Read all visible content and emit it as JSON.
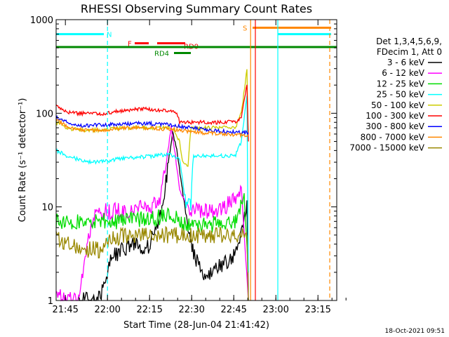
{
  "chart_data": {
    "type": "line",
    "title": "RHESSI Observing Summary Count Rates",
    "xlabel": "Start Time (28-Jun-04 21:41:42)",
    "ylabel": "Count Rate (s⁻¹ detector⁻¹)",
    "y_scale": "log",
    "ylim": [
      1,
      1000
    ],
    "xlim_minutes": [
      0,
      100
    ],
    "x_ticks": [
      {
        "label": "21:45",
        "minute": 3.3
      },
      {
        "label": "22:00",
        "minute": 18.3
      },
      {
        "label": "22:15",
        "minute": 33.3
      },
      {
        "label": "22:30",
        "minute": 48.3
      },
      {
        "label": "22:45",
        "minute": 63.3
      },
      {
        "label": "23:00",
        "minute": 78.3
      },
      {
        "label": "23:15",
        "minute": 93.3
      }
    ],
    "y_ticks": [
      {
        "label": "1",
        "value": 1
      },
      {
        "label": "10",
        "value": 10
      },
      {
        "label": "100",
        "value": 100
      },
      {
        "label": "1000",
        "value": 1000
      }
    ],
    "legend": {
      "header_lines": [
        "Det 1,3,4,5,6,9,",
        "FDecim 1, Att 0"
      ],
      "placement": "right"
    },
    "series": [
      {
        "name": "3 - 6 keV",
        "color": "#000000",
        "points": [
          [
            8,
            1
          ],
          [
            14,
            1
          ],
          [
            17,
            1.3
          ],
          [
            20,
            3
          ],
          [
            24,
            3.5
          ],
          [
            28,
            4
          ],
          [
            32,
            3.5
          ],
          [
            35,
            5
          ],
          [
            38,
            10
          ],
          [
            40,
            30
          ],
          [
            41.5,
            62
          ],
          [
            43,
            40
          ],
          [
            45,
            15
          ],
          [
            47,
            6
          ],
          [
            49,
            3
          ],
          [
            52,
            2
          ],
          [
            56,
            2
          ],
          [
            60,
            2.5
          ],
          [
            63,
            3
          ],
          [
            66,
            5
          ],
          [
            68,
            12
          ],
          [
            68.5,
            1
          ]
        ]
      },
      {
        "name": "6 - 12 keV",
        "color": "#ff00ff",
        "points": [
          [
            0,
            1.2
          ],
          [
            3,
            1
          ],
          [
            8,
            1
          ],
          [
            13,
            8
          ],
          [
            18,
            9
          ],
          [
            24,
            9
          ],
          [
            28,
            9
          ],
          [
            31,
            10
          ],
          [
            34,
            10
          ],
          [
            37,
            12
          ],
          [
            39,
            25
          ],
          [
            41,
            72
          ],
          [
            42.5,
            35
          ],
          [
            44,
            15
          ],
          [
            47,
            10
          ],
          [
            50,
            9
          ],
          [
            55,
            9
          ],
          [
            60,
            10
          ],
          [
            64,
            12
          ],
          [
            66,
            16
          ],
          [
            68.5,
            1
          ]
        ]
      },
      {
        "name": "12 - 25 keV",
        "color": "#00dd00",
        "points": [
          [
            0,
            7
          ],
          [
            5,
            7
          ],
          [
            10,
            6.8
          ],
          [
            15,
            7
          ],
          [
            20,
            7
          ],
          [
            25,
            7
          ],
          [
            30,
            7.5
          ],
          [
            35,
            7.5
          ],
          [
            38,
            8
          ],
          [
            41,
            8.5
          ],
          [
            44,
            7
          ],
          [
            47,
            6.5
          ],
          [
            50,
            6.5
          ],
          [
            55,
            6.5
          ],
          [
            60,
            6.5
          ],
          [
            64,
            7
          ],
          [
            67,
            12
          ],
          [
            68.5,
            2
          ]
        ]
      },
      {
        "name": "25 - 50 keV",
        "color": "#00ffff",
        "points": [
          [
            0,
            40
          ],
          [
            4,
            35
          ],
          [
            8,
            32
          ],
          [
            12,
            30
          ],
          [
            18,
            31
          ],
          [
            24,
            33
          ],
          [
            30,
            34
          ],
          [
            35,
            35
          ],
          [
            38,
            36
          ],
          [
            40,
            36
          ],
          [
            42,
            35
          ],
          [
            44,
            33
          ],
          [
            46,
            12
          ],
          [
            48,
            11
          ],
          [
            49,
            35
          ],
          [
            53,
            35
          ],
          [
            57,
            35
          ],
          [
            61,
            35
          ],
          [
            64,
            36
          ],
          [
            66,
            50
          ],
          [
            68,
            150
          ],
          [
            68.5,
            2
          ]
        ]
      },
      {
        "name": "50 - 100 keV",
        "color": "#cccc00",
        "points": [
          [
            0,
            80
          ],
          [
            5,
            68
          ],
          [
            10,
            66
          ],
          [
            15,
            66
          ],
          [
            20,
            68
          ],
          [
            25,
            70
          ],
          [
            30,
            71
          ],
          [
            35,
            70
          ],
          [
            40,
            70
          ],
          [
            42,
            68
          ],
          [
            44,
            50
          ],
          [
            45,
            30
          ],
          [
            47,
            26
          ],
          [
            48,
            70
          ],
          [
            52,
            70
          ],
          [
            57,
            70
          ],
          [
            61,
            70
          ],
          [
            64,
            72
          ],
          [
            66,
            100
          ],
          [
            68,
            300
          ],
          [
            68.5,
            50
          ]
        ]
      },
      {
        "name": "100 - 300 keV",
        "color": "#ff0000",
        "points": [
          [
            0,
            120
          ],
          [
            3,
            105
          ],
          [
            7,
            100
          ],
          [
            12,
            100
          ],
          [
            17,
            98
          ],
          [
            22,
            105
          ],
          [
            27,
            110
          ],
          [
            32,
            112
          ],
          [
            35,
            108
          ],
          [
            40,
            106
          ],
          [
            43,
            103
          ],
          [
            44,
            80
          ],
          [
            46,
            80
          ],
          [
            50,
            80
          ],
          [
            55,
            80
          ],
          [
            60,
            80
          ],
          [
            64,
            82
          ],
          [
            66,
            90
          ],
          [
            68,
            200
          ],
          [
            68.5,
            50
          ]
        ]
      },
      {
        "name": "300 - 800 keV",
        "color": "#0000ff",
        "points": [
          [
            0,
            90
          ],
          [
            5,
            78
          ],
          [
            10,
            74
          ],
          [
            15,
            75
          ],
          [
            20,
            76
          ],
          [
            25,
            77
          ],
          [
            30,
            78
          ],
          [
            35,
            77
          ],
          [
            40,
            76
          ],
          [
            44,
            72
          ],
          [
            48,
            70
          ],
          [
            52,
            68
          ],
          [
            56,
            66
          ],
          [
            60,
            64
          ],
          [
            64,
            63
          ],
          [
            67,
            62
          ],
          [
            68.5,
            62
          ]
        ]
      },
      {
        "name": "800 - 7000 keV",
        "color": "#ff8800",
        "points": [
          [
            0,
            85
          ],
          [
            5,
            70
          ],
          [
            10,
            66
          ],
          [
            15,
            66
          ],
          [
            20,
            68
          ],
          [
            25,
            70
          ],
          [
            30,
            70
          ],
          [
            35,
            69
          ],
          [
            40,
            68
          ],
          [
            44,
            66
          ],
          [
            48,
            64
          ],
          [
            52,
            62
          ],
          [
            56,
            61
          ],
          [
            60,
            60
          ],
          [
            64,
            59
          ],
          [
            67,
            58
          ],
          [
            68.5,
            58
          ]
        ]
      },
      {
        "name": "7000 - 15000 keV",
        "color": "#998800",
        "points": [
          [
            0,
            5
          ],
          [
            4,
            4
          ],
          [
            8,
            3.5
          ],
          [
            12,
            3.5
          ],
          [
            16,
            3.5
          ],
          [
            20,
            4.5
          ],
          [
            24,
            5
          ],
          [
            28,
            5
          ],
          [
            32,
            5
          ],
          [
            36,
            5
          ],
          [
            40,
            5
          ],
          [
            44,
            5
          ],
          [
            48,
            5
          ],
          [
            52,
            5
          ],
          [
            56,
            5
          ],
          [
            60,
            5
          ],
          [
            64,
            5
          ],
          [
            68,
            5
          ],
          [
            68.5,
            1
          ]
        ]
      }
    ],
    "flags": [
      {
        "label": "N",
        "color": "#00ffff",
        "y": 700,
        "segments": [
          [
            0,
            17
          ],
          [
            79,
            98
          ]
        ]
      },
      {
        "label": "F",
        "color": "#ff0000",
        "y": 560,
        "segments": [
          [
            28,
            33
          ]
        ]
      },
      {
        "label": "RD0",
        "color": "#ff0000",
        "y": 560,
        "segments": [
          [
            36,
            46
          ]
        ]
      },
      {
        "label": "RD4",
        "color": "#008800",
        "y": 440,
        "segments": [
          [
            42,
            48
          ]
        ]
      },
      {
        "label": "S",
        "color": "#ff8800",
        "y": 820,
        "segments": [
          [
            70,
            98
          ]
        ]
      },
      {
        "label": "",
        "color": "#008800",
        "y": 510,
        "segments": [
          [
            0,
            100
          ]
        ]
      }
    ],
    "vlines": [
      {
        "minute": 18.3,
        "color": "#00ffff",
        "dashed": true
      },
      {
        "minute": 69.3,
        "color": "#ff8800",
        "dashed": false
      },
      {
        "minute": 71,
        "color": "#ff0000",
        "dashed": false
      },
      {
        "minute": 79,
        "color": "#00ffff",
        "dashed": false
      },
      {
        "minute": 97.5,
        "color": "#ff8800",
        "dashed": true
      }
    ]
  },
  "footer": {
    "timestamp": "18-Oct-2021 09:51"
  }
}
